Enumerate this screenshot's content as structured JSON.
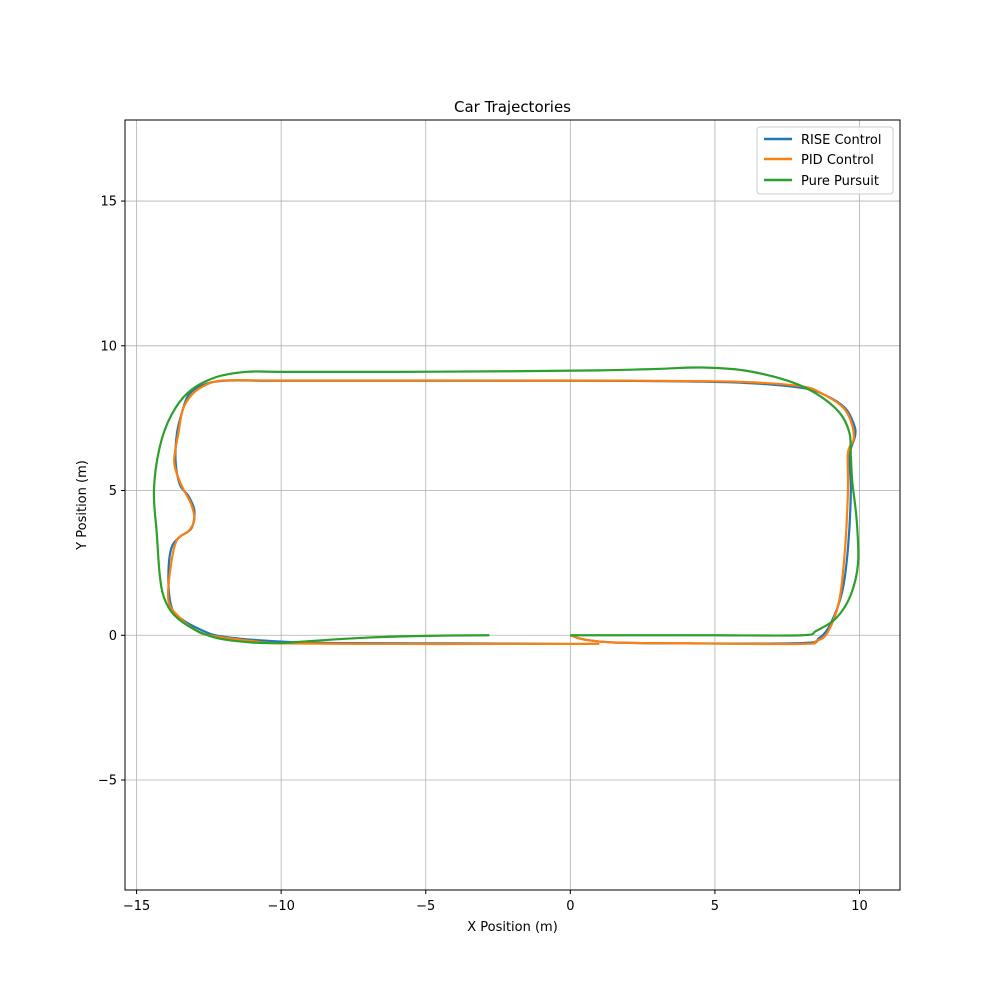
{
  "chart_data": {
    "type": "line",
    "title": "Car Trajectories",
    "xlabel": "X Position (m)",
    "ylabel": "Y Position (m)",
    "xlim": [
      -15.4,
      11.4
    ],
    "ylim": [
      -8.8,
      17.8
    ],
    "xticks": [
      -15,
      -10,
      -5,
      0,
      5,
      10
    ],
    "yticks": [
      -5,
      0,
      5,
      10,
      15
    ],
    "xtick_labels": [
      "−15",
      "−10",
      "−5",
      "0",
      "5",
      "10"
    ],
    "ytick_labels": [
      "−5",
      "0",
      "5",
      "10",
      "15"
    ],
    "grid": true,
    "legend": "top-right",
    "series": [
      {
        "name": "RISE Control",
        "color": "#1f77b4",
        "points": [
          [
            0,
            0
          ],
          [
            0.5,
            -0.15
          ],
          [
            1.5,
            -0.25
          ],
          [
            4,
            -0.28
          ],
          [
            8,
            -0.27
          ],
          [
            8.6,
            -0.1
          ],
          [
            9,
            0.4
          ],
          [
            9.4,
            1.5
          ],
          [
            9.6,
            3
          ],
          [
            9.7,
            5
          ],
          [
            9.65,
            6.2
          ],
          [
            9.85,
            6.9
          ],
          [
            9.8,
            7.3
          ],
          [
            9.5,
            7.85
          ],
          [
            8.8,
            8.3
          ],
          [
            8,
            8.55
          ],
          [
            6,
            8.72
          ],
          [
            3,
            8.78
          ],
          [
            0,
            8.79
          ],
          [
            -5,
            8.79
          ],
          [
            -10,
            8.79
          ],
          [
            -12,
            8.79
          ],
          [
            -12.8,
            8.6
          ],
          [
            -13.2,
            8.3
          ],
          [
            -13.4,
            7.8
          ],
          [
            -13.6,
            7
          ],
          [
            -13.65,
            6
          ],
          [
            -13.5,
            5.2
          ],
          [
            -13.2,
            4.8
          ],
          [
            -13,
            4.3
          ],
          [
            -13.1,
            3.7
          ],
          [
            -13.5,
            3.4
          ],
          [
            -13.8,
            3
          ],
          [
            -13.9,
            2
          ],
          [
            -13.8,
            1
          ],
          [
            -13.5,
            0.6
          ],
          [
            -12.8,
            0.2
          ],
          [
            -12,
            -0.05
          ],
          [
            -10,
            -0.22
          ],
          [
            -8,
            -0.27
          ],
          [
            -4,
            -0.28
          ],
          [
            0,
            -0.3
          ],
          [
            1,
            -0.3
          ]
        ]
      },
      {
        "name": "PID Control",
        "color": "#ff7f0e",
        "points": [
          [
            0,
            0
          ],
          [
            0.5,
            -0.15
          ],
          [
            1.5,
            -0.25
          ],
          [
            4,
            -0.28
          ],
          [
            8,
            -0.3
          ],
          [
            8.5,
            -0.2
          ],
          [
            8.9,
            0.1
          ],
          [
            9.3,
            1.2
          ],
          [
            9.5,
            3
          ],
          [
            9.6,
            5
          ],
          [
            9.6,
            6.3
          ],
          [
            9.8,
            6.8
          ],
          [
            9.7,
            7.4
          ],
          [
            9.4,
            7.9
          ],
          [
            8.7,
            8.35
          ],
          [
            8,
            8.6
          ],
          [
            6,
            8.75
          ],
          [
            3,
            8.79
          ],
          [
            0,
            8.8
          ],
          [
            -5,
            8.8
          ],
          [
            -10,
            8.8
          ],
          [
            -12,
            8.8
          ],
          [
            -12.7,
            8.6
          ],
          [
            -13.1,
            8.3
          ],
          [
            -13.4,
            7.8
          ],
          [
            -13.55,
            7
          ],
          [
            -13.7,
            6
          ],
          [
            -13.5,
            5.3
          ],
          [
            -13.3,
            4.9
          ],
          [
            -13.1,
            4.5
          ],
          [
            -13,
            4
          ],
          [
            -13.2,
            3.6
          ],
          [
            -13.6,
            3.3
          ],
          [
            -13.8,
            2.5
          ],
          [
            -13.9,
            1.2
          ],
          [
            -13.5,
            0.6
          ],
          [
            -13,
            0.2
          ],
          [
            -12.5,
            0
          ],
          [
            -11,
            -0.2
          ],
          [
            -10,
            -0.28
          ],
          [
            -6,
            -0.3
          ],
          [
            -2,
            -0.3
          ],
          [
            0,
            -0.3
          ],
          [
            1,
            -0.3
          ]
        ]
      },
      {
        "name": "Pure Pursuit",
        "color": "#2ca02c",
        "points": [
          [
            0,
            0
          ],
          [
            2,
            0
          ],
          [
            5,
            0
          ],
          [
            8,
            0
          ],
          [
            8.5,
            0.15
          ],
          [
            9.2,
            0.6
          ],
          [
            9.7,
            1.4
          ],
          [
            9.95,
            2.5
          ],
          [
            9.9,
            4
          ],
          [
            9.75,
            5.3
          ],
          [
            9.7,
            6.2
          ],
          [
            9.65,
            7
          ],
          [
            9.3,
            7.7
          ],
          [
            8.5,
            8.35
          ],
          [
            7.5,
            8.8
          ],
          [
            6,
            9.15
          ],
          [
            4.5,
            9.25
          ],
          [
            3,
            9.2
          ],
          [
            1,
            9.15
          ],
          [
            -2,
            9.12
          ],
          [
            -6,
            9.1
          ],
          [
            -10,
            9.1
          ],
          [
            -11.2,
            9.1
          ],
          [
            -12.3,
            8.9
          ],
          [
            -13.2,
            8.4
          ],
          [
            -13.8,
            7.6
          ],
          [
            -14.2,
            6.5
          ],
          [
            -14.4,
            5
          ],
          [
            -14.3,
            3.5
          ],
          [
            -14.2,
            2.1
          ],
          [
            -14.05,
            1.3
          ],
          [
            -13.7,
            0.7
          ],
          [
            -13,
            0.2
          ],
          [
            -12.2,
            -0.1
          ],
          [
            -11,
            -0.25
          ],
          [
            -10,
            -0.27
          ],
          [
            -9,
            -0.2
          ],
          [
            -7,
            -0.08
          ],
          [
            -5,
            -0.02
          ],
          [
            -2.8,
            0
          ]
        ]
      }
    ]
  }
}
